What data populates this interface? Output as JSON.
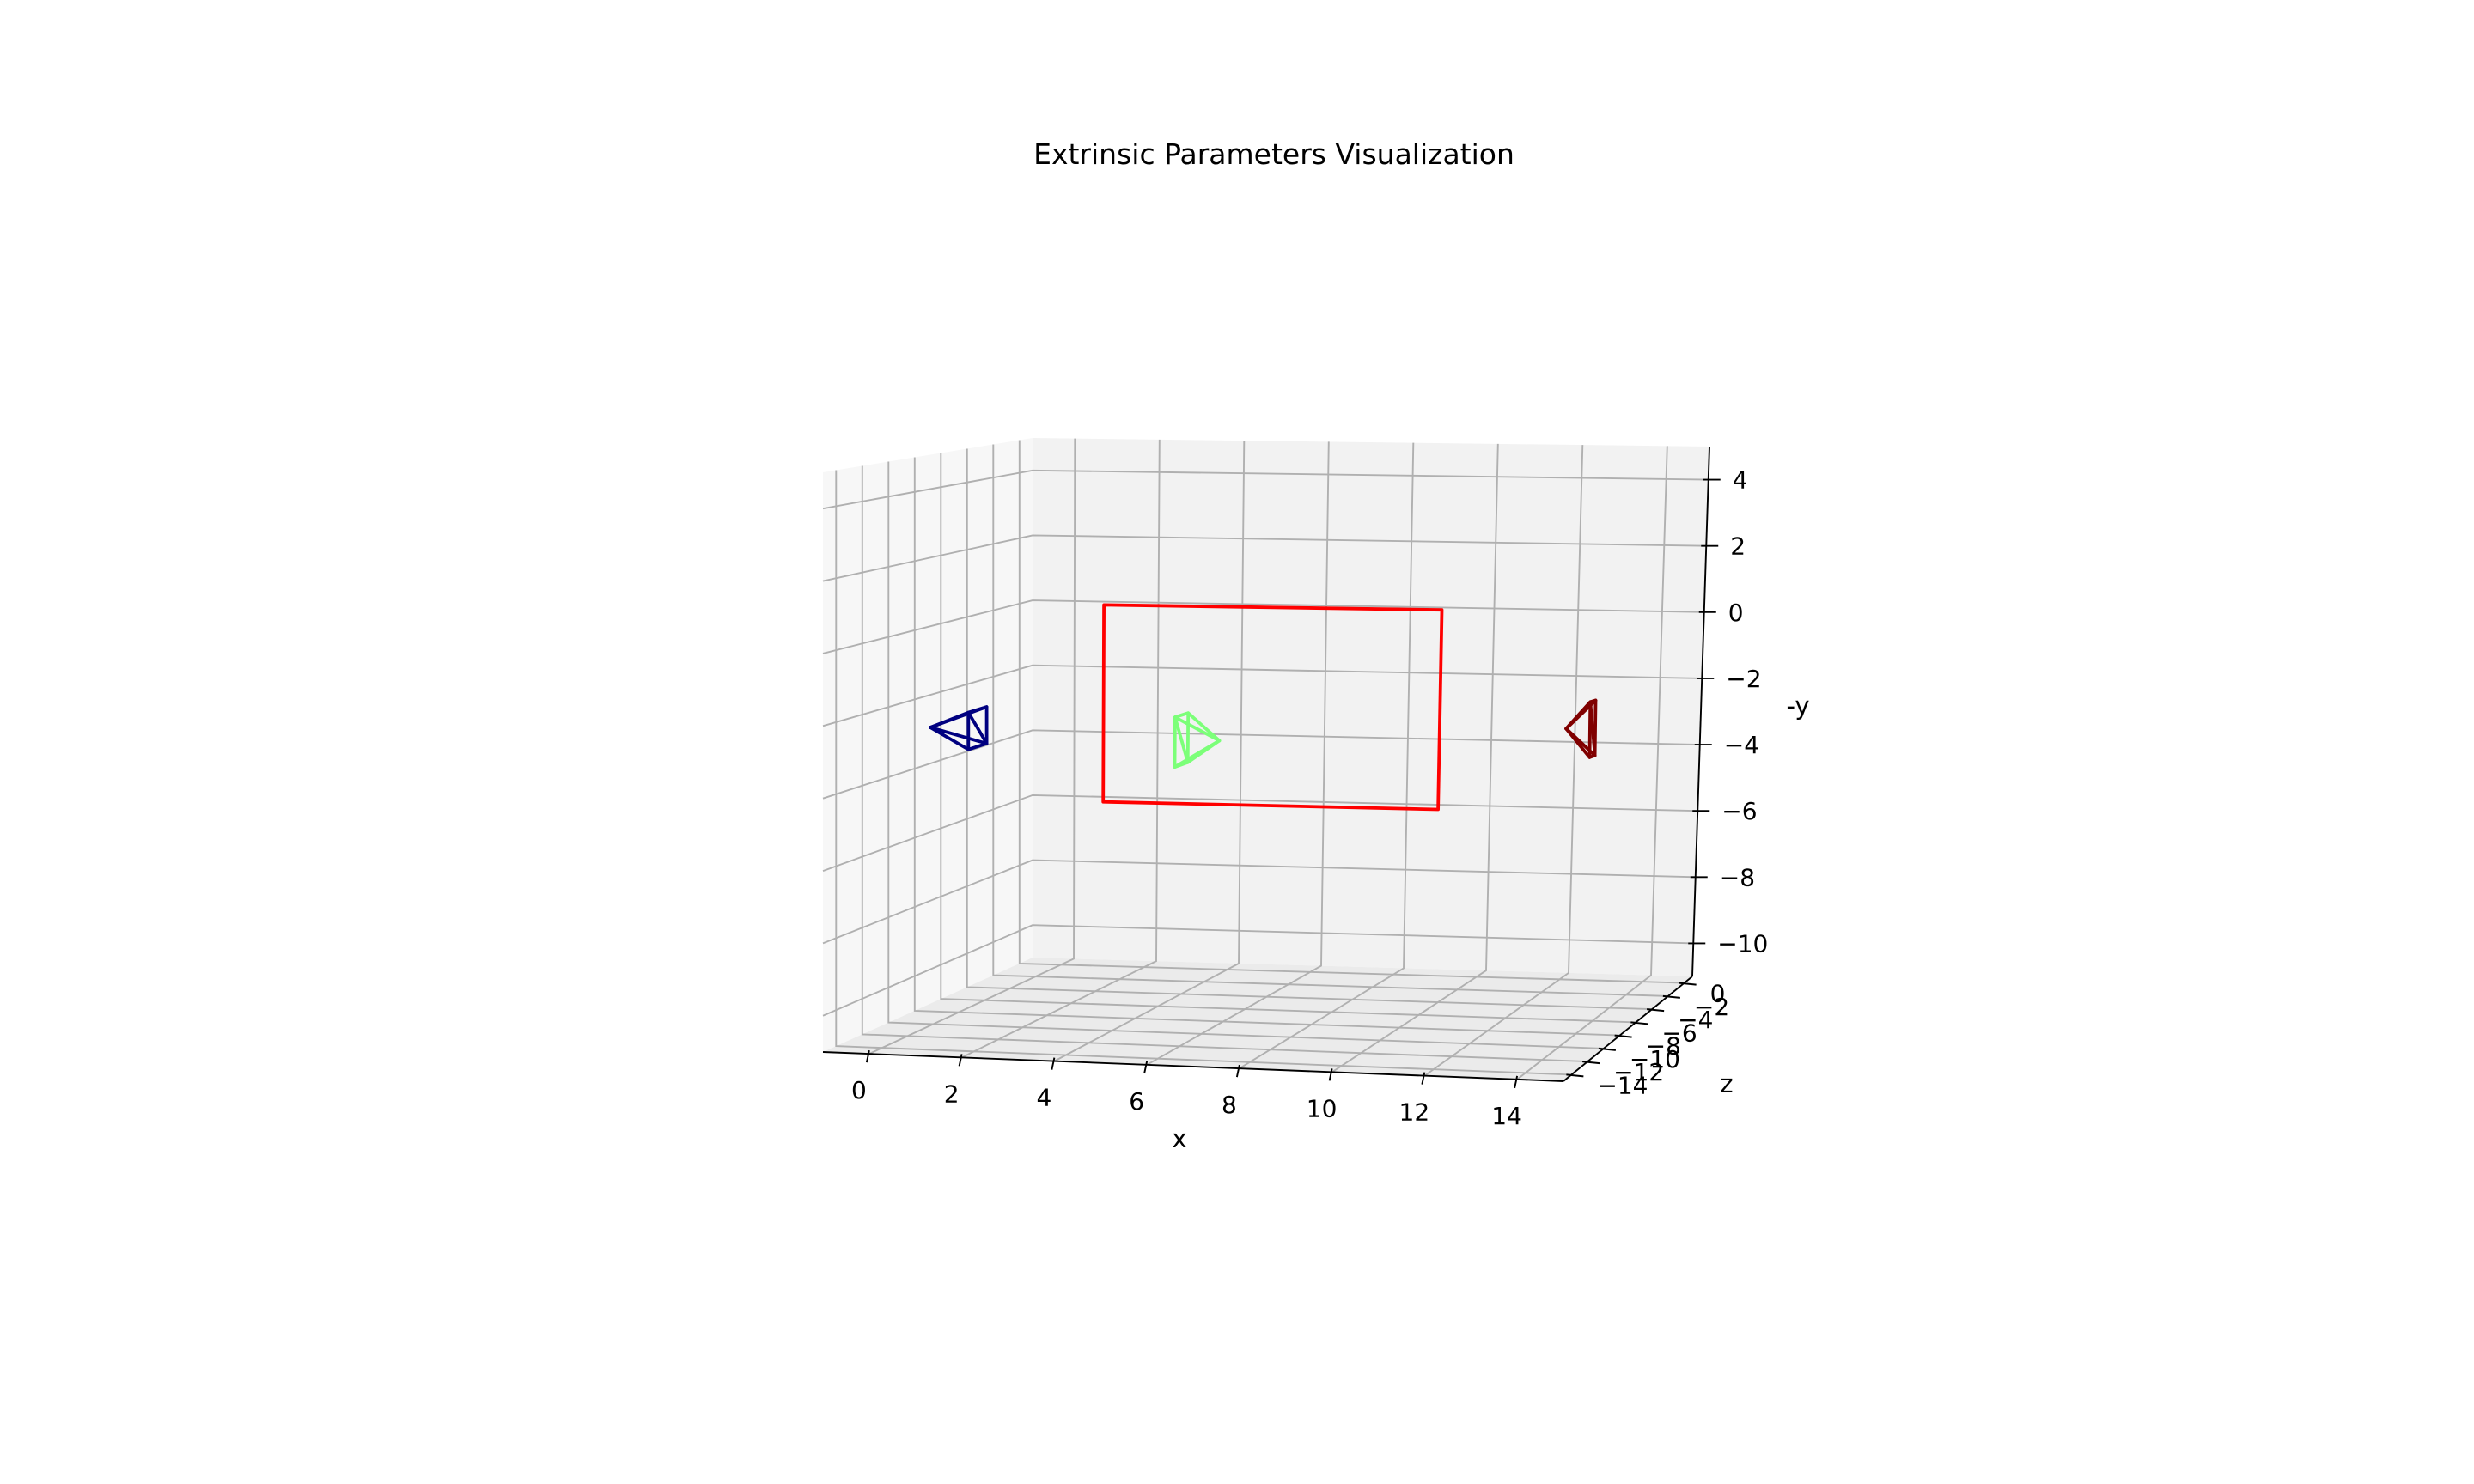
{
  "chart_data": {
    "type": "3d-wireframe",
    "title": "Extrinsic Parameters Visualization",
    "xlabel": "x",
    "ylabel": "-y",
    "zlabel": "z",
    "x_ticks": [
      0,
      2,
      4,
      6,
      8,
      10,
      12,
      14
    ],
    "y_ticks": [
      4,
      2,
      0,
      -2,
      -4,
      -6,
      -8,
      -10
    ],
    "z_ticks": [
      0,
      -2,
      -4,
      -6,
      -8,
      -10,
      -12,
      -14
    ],
    "x_tick_labels": [
      "0",
      "2",
      "4",
      "6",
      "8",
      "10",
      "12",
      "14"
    ],
    "y_tick_labels": [
      "4",
      "2",
      "0",
      "−2",
      "−4",
      "−6",
      "−8",
      "−10"
    ],
    "z_tick_labels": [
      "0",
      "−2",
      "−4",
      "−6",
      "−8",
      "−10",
      "−12",
      "−14"
    ],
    "xlim": [
      -1,
      15
    ],
    "ylim": [
      -11,
      5
    ],
    "zlim": [
      -15,
      1
    ],
    "grid": true,
    "colors": {
      "board": "#ff0000",
      "camera_blue": "#000080",
      "camera_green": "#7cff79",
      "camera_darkred": "#800000",
      "pane_back": "#f2f2f2",
      "pane_side": "#f7f7f7",
      "pane_floor": "#ebebeb",
      "grid": "#b0b0b0"
    },
    "objects": [
      {
        "name": "calibration-board",
        "color": "#ff0000",
        "style": "rectangle",
        "corners": [
          [
            1,
            0,
            0
          ],
          [
            9,
            0,
            0
          ],
          [
            9,
            -6,
            0
          ],
          [
            1,
            -6,
            0
          ]
        ]
      },
      {
        "name": "camera-1",
        "color": "#000080",
        "style": "frustum",
        "center": [
          -1,
          -3.4,
          -3.2
        ],
        "half_width": 0.7,
        "half_height": 0.55,
        "depth": 1.1,
        "direction": 1
      },
      {
        "name": "camera-2",
        "color": "#7cff79",
        "style": "frustum",
        "center": [
          3,
          -4,
          -0.5
        ],
        "half_width": 0.55,
        "half_height": 0.75,
        "depth": 0.9,
        "direction": -1
      },
      {
        "name": "camera-3",
        "color": "#800000",
        "style": "frustum",
        "center": [
          14.2,
          -2.8,
          -7.5
        ],
        "half_width": 0.3,
        "half_height": 0.75,
        "depth": 0.6,
        "direction": 1
      }
    ]
  }
}
